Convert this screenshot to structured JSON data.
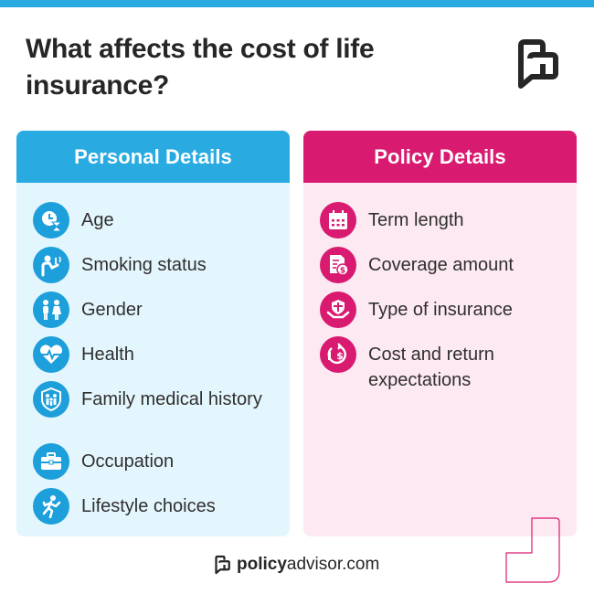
{
  "title": "What affects the cost of life insurance?",
  "colors": {
    "blue": "#29abe2",
    "pink": "#d81b70",
    "blue_bg": "#e4f6fd",
    "pink_bg": "#fde9f2"
  },
  "personal": {
    "heading": "Personal Details",
    "items": [
      {
        "label": "Age",
        "icon": "clock-hourglass-icon"
      },
      {
        "label": "Smoking status",
        "icon": "smoker-icon"
      },
      {
        "label": "Gender",
        "icon": "gender-people-icon"
      },
      {
        "label": "Health",
        "icon": "heartbeat-icon"
      },
      {
        "label": "Family medical history",
        "icon": "family-shield-icon"
      },
      {
        "label": "Occupation",
        "icon": "briefcase-icon"
      },
      {
        "label": "Lifestyle choices",
        "icon": "runner-icon"
      }
    ]
  },
  "policy": {
    "heading": "Policy Details",
    "items": [
      {
        "label": "Term length",
        "icon": "calendar-icon"
      },
      {
        "label": "Coverage amount",
        "icon": "document-dollar-icon"
      },
      {
        "label": "Type of insurance",
        "icon": "hand-shield-icon"
      },
      {
        "label": "Cost and return expectations",
        "icon": "dollar-cycle-icon"
      }
    ]
  },
  "footer": {
    "brand_bold": "policy",
    "brand_rest": "advisor.com"
  }
}
